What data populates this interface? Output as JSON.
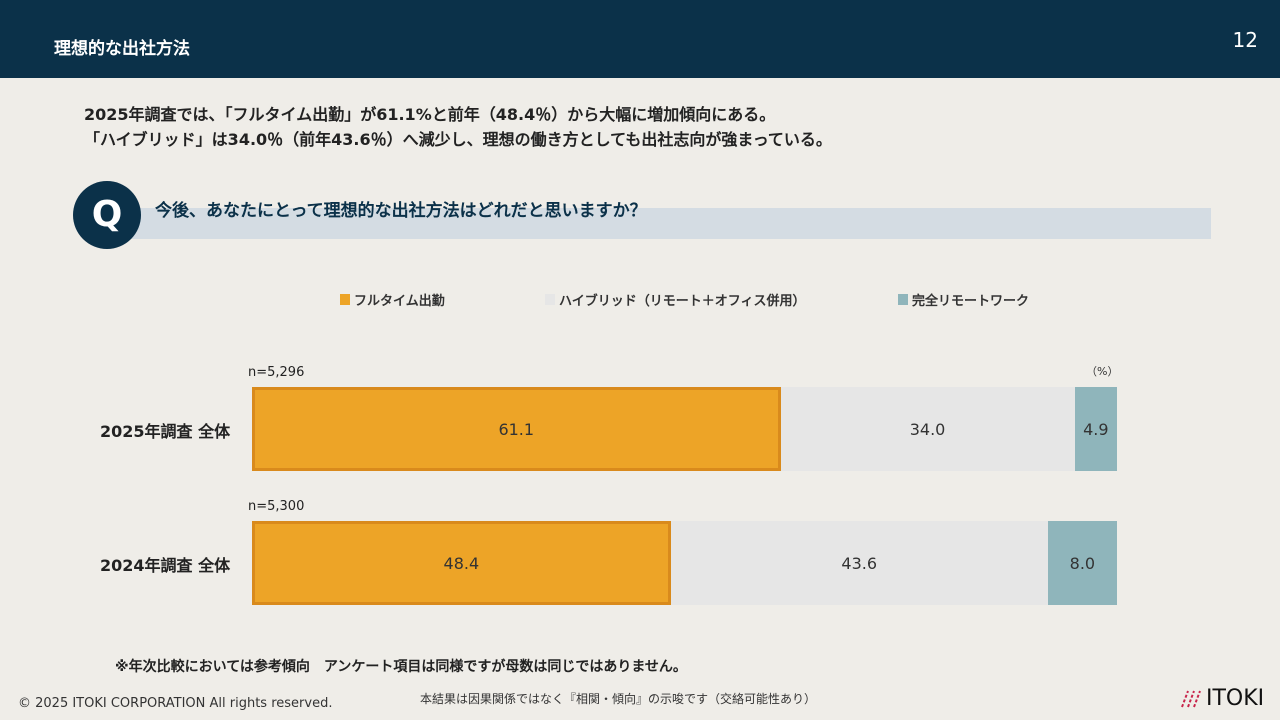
{
  "header": {
    "title": "理想的な出社方法",
    "page": "12"
  },
  "summary": [
    "2025年調査では、「フルタイム出勤」が61.1%と前年（48.4％）から大幅に増加傾向にある。",
    "「ハイブリッド」は34.0％（前年43.6％）へ減少し、理想の働き方としても出社志向が強まっている。"
  ],
  "question": {
    "badge": "Q",
    "text": "今後、あなたにとって理想的な出社方法はどれだと思いますか？"
  },
  "chart_data": {
    "type": "bar",
    "stacked": true,
    "orientation": "horizontal",
    "unit_label": "（%）",
    "categories": [
      "2025年調査 全体",
      "2024年調査 全体"
    ],
    "sample_sizes": [
      "n=5,296",
      "n=5,300"
    ],
    "series": [
      {
        "name": "フルタイム出勤",
        "values": [
          61.1,
          48.4
        ],
        "color": "#eda427"
      },
      {
        "name": "ハイブリッド（リモート＋オフィス併用）",
        "values": [
          34.0,
          43.6
        ],
        "color": "#e6e6e6"
      },
      {
        "name": "完全リモートワーク",
        "values": [
          4.9,
          8.0
        ],
        "color": "#8fb5bb"
      }
    ]
  },
  "footer": {
    "note": "※年次比較においては参考傾向　アンケート項目は同様ですが母数は同じではありません。",
    "copyright": "© 2025 ITOKI CORPORATION  All rights reserved.",
    "disclaimer": "本結果は因果関係ではなく『相関・傾向』の示唆です（交絡可能性あり）",
    "logo": "ITOKI"
  }
}
